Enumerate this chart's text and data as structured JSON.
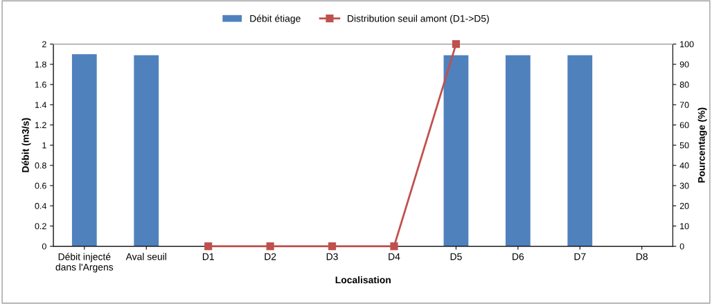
{
  "chart_data": {
    "type": "bar",
    "xlabel": "Localisation",
    "ylabel": "Débit (m3/s)",
    "y2label": "Pourcentage (%)",
    "categories": [
      "Débit injecté\ndans l'Argens",
      "Aval seuil",
      "D1",
      "D2",
      "D3",
      "D4",
      "D5",
      "D6",
      "D7",
      "D8"
    ],
    "series": [
      {
        "name": "Débit étiage",
        "color": "#4f81bd",
        "values": [
          1.9,
          1.89,
          null,
          null,
          null,
          null,
          1.89,
          1.89,
          1.89,
          null
        ]
      },
      {
        "name": "Distribution seuil amont (D1->D5)",
        "type": "line",
        "axis": "y2",
        "color": "#c0504d",
        "marker": "square",
        "values": [
          null,
          null,
          0,
          0,
          0,
          0,
          100,
          null,
          null,
          null
        ]
      }
    ],
    "ylim": [
      0,
      2
    ],
    "yticks": [
      0,
      0.2,
      0.4,
      0.6,
      0.8,
      1,
      1.2,
      1.4,
      1.6,
      1.8,
      2
    ],
    "y2lim": [
      0,
      100
    ],
    "y2ticks": [
      0,
      10,
      20,
      30,
      40,
      50,
      60,
      70,
      80,
      90,
      100
    ],
    "grid": false,
    "legend": "top"
  }
}
